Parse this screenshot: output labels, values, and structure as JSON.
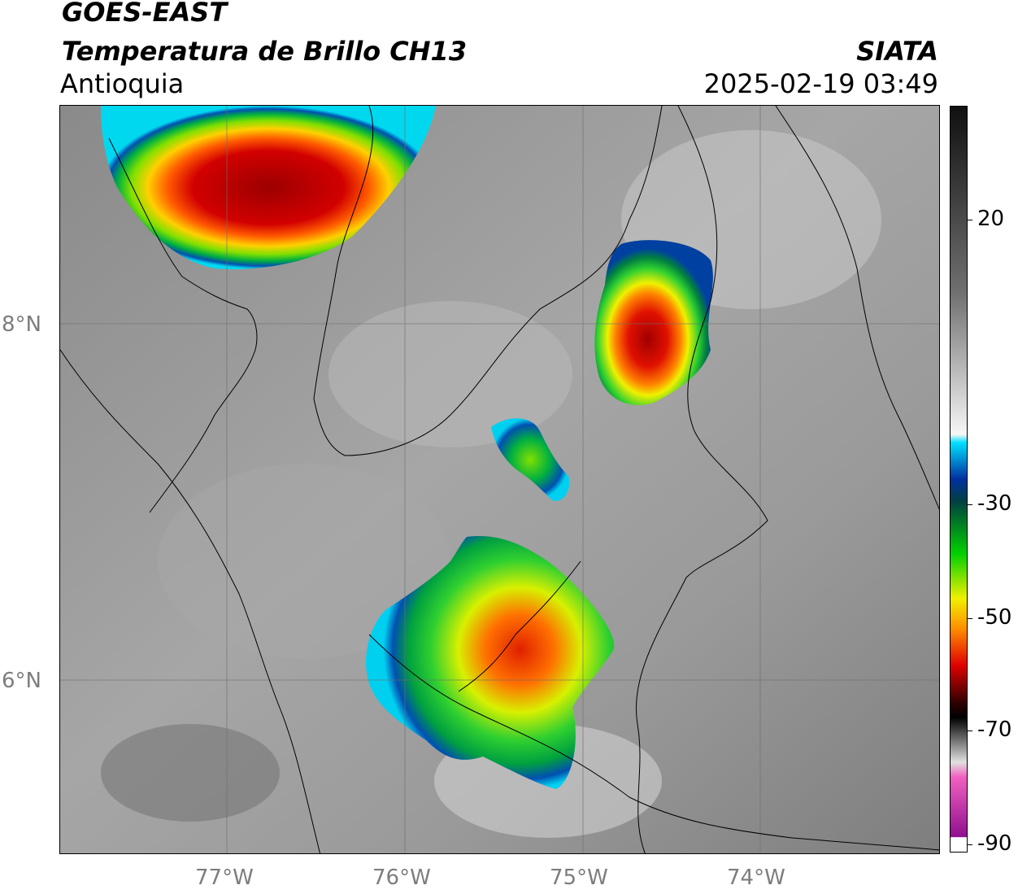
{
  "header": {
    "satellite": "GOES-EAST",
    "product": "Temperatura de Brillo CH13",
    "region": "Antioquia",
    "org": "SIATA",
    "datetime": "2025-02-19 03:49"
  },
  "map": {
    "lat_labels": [
      "8°N",
      "6°N"
    ],
    "lon_labels": [
      "77°W",
      "76°W",
      "75°W",
      "74°W"
    ],
    "grid": true
  },
  "colorbar": {
    "ticks": [
      "20",
      "-30",
      "-50",
      "-70",
      "-90"
    ],
    "range": [
      -90,
      30
    ]
  },
  "colors": {
    "background_gray": "#8c8c8c",
    "cold_cloud_red": "#c80000",
    "orange": "#ff8c00",
    "yellow": "#ffff00",
    "green": "#00c000",
    "blue": "#003ca0",
    "cyan": "#00e0ff",
    "magenta": "#c040c0"
  }
}
